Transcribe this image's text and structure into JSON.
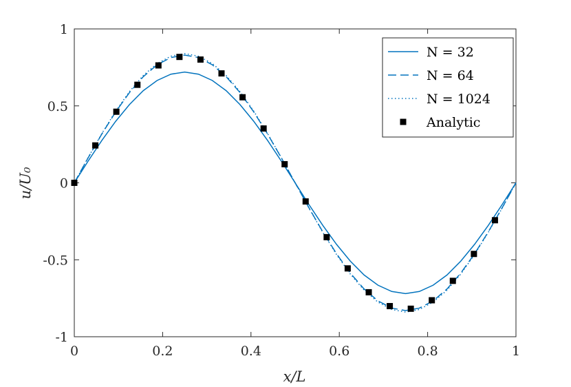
{
  "chart_data": {
    "type": "line",
    "xlabel": "x/L",
    "ylabel": "u/U₀",
    "xlim": [
      0,
      1
    ],
    "ylim": [
      -1,
      1
    ],
    "xticks": [
      0,
      0.2,
      0.4,
      0.6,
      0.8,
      1
    ],
    "xtick_labels": [
      "0",
      "0.2",
      "0.4",
      "0.6",
      "0.8",
      "1"
    ],
    "yticks": [
      -1,
      -0.5,
      0,
      0.5,
      1
    ],
    "ytick_labels": [
      "-1",
      "-0.5",
      "0",
      "0.5",
      "1"
    ],
    "grid": false,
    "legend_position": "top-right",
    "series": [
      {
        "name": "N = 32",
        "style": "solid",
        "color": "#0072BD",
        "x": [
          0,
          0.03125,
          0.0625,
          0.09375,
          0.125,
          0.15625,
          0.1875,
          0.21875,
          0.25,
          0.28125,
          0.3125,
          0.34375,
          0.375,
          0.40625,
          0.4375,
          0.46875,
          0.5,
          0.53125,
          0.5625,
          0.59375,
          0.625,
          0.65625,
          0.6875,
          0.71875,
          0.75,
          0.78125,
          0.8125,
          0.84375,
          0.875,
          0.90625,
          0.9375,
          0.96875,
          1
        ],
        "y": [
          0,
          0.141,
          0.276,
          0.4,
          0.509,
          0.599,
          0.665,
          0.706,
          0.72,
          0.706,
          0.665,
          0.599,
          0.509,
          0.4,
          0.276,
          0.141,
          0,
          -0.141,
          -0.276,
          -0.4,
          -0.509,
          -0.599,
          -0.665,
          -0.706,
          -0.72,
          -0.706,
          -0.665,
          -0.599,
          -0.509,
          -0.4,
          -0.276,
          -0.141,
          0
        ]
      },
      {
        "name": "N = 64",
        "style": "dashed",
        "color": "#0072BD",
        "x": [
          0,
          0.03125,
          0.0625,
          0.09375,
          0.125,
          0.15625,
          0.1875,
          0.21875,
          0.25,
          0.28125,
          0.3125,
          0.34375,
          0.375,
          0.40625,
          0.4375,
          0.46875,
          0.5,
          0.53125,
          0.5625,
          0.59375,
          0.625,
          0.65625,
          0.6875,
          0.71875,
          0.75,
          0.78125,
          0.8125,
          0.84375,
          0.875,
          0.90625,
          0.9375,
          0.96875,
          1
        ],
        "y": [
          0,
          0.162,
          0.318,
          0.461,
          0.587,
          0.69,
          0.767,
          0.814,
          0.83,
          0.814,
          0.767,
          0.69,
          0.587,
          0.461,
          0.318,
          0.162,
          0,
          -0.162,
          -0.318,
          -0.461,
          -0.587,
          -0.69,
          -0.767,
          -0.814,
          -0.83,
          -0.814,
          -0.767,
          -0.69,
          -0.587,
          -0.461,
          -0.318,
          -0.162,
          0
        ]
      },
      {
        "name": "N = 1024",
        "style": "dotted",
        "color": "#0072BD",
        "x": [
          0,
          0.03125,
          0.0625,
          0.09375,
          0.125,
          0.15625,
          0.1875,
          0.21875,
          0.25,
          0.28125,
          0.3125,
          0.34375,
          0.375,
          0.40625,
          0.4375,
          0.46875,
          0.5,
          0.53125,
          0.5625,
          0.59375,
          0.625,
          0.65625,
          0.6875,
          0.71875,
          0.75,
          0.78125,
          0.8125,
          0.84375,
          0.875,
          0.90625,
          0.9375,
          0.96875,
          1
        ],
        "y": [
          0,
          0.164,
          0.321,
          0.466,
          0.593,
          0.698,
          0.775,
          0.823,
          0.84,
          0.823,
          0.775,
          0.698,
          0.593,
          0.466,
          0.321,
          0.164,
          0,
          -0.164,
          -0.321,
          -0.466,
          -0.593,
          -0.698,
          -0.775,
          -0.823,
          -0.84,
          -0.823,
          -0.775,
          -0.698,
          -0.593,
          -0.466,
          -0.321,
          -0.164,
          0
        ]
      },
      {
        "name": "Analytic",
        "style": "markers",
        "color": "#000000",
        "x": [
          0,
          0.0476,
          0.0952,
          0.1429,
          0.1905,
          0.2381,
          0.2857,
          0.3333,
          0.381,
          0.4286,
          0.4762,
          0.5238,
          0.5714,
          0.619,
          0.6667,
          0.7143,
          0.7619,
          0.8095,
          0.8571,
          0.9048,
          0.9524
        ],
        "y": [
          0,
          0.243,
          0.462,
          0.637,
          0.763,
          0.818,
          0.801,
          0.711,
          0.556,
          0.353,
          0.121,
          -0.121,
          -0.353,
          -0.556,
          -0.711,
          -0.801,
          -0.818,
          -0.763,
          -0.637,
          -0.462,
          -0.243
        ]
      }
    ]
  }
}
